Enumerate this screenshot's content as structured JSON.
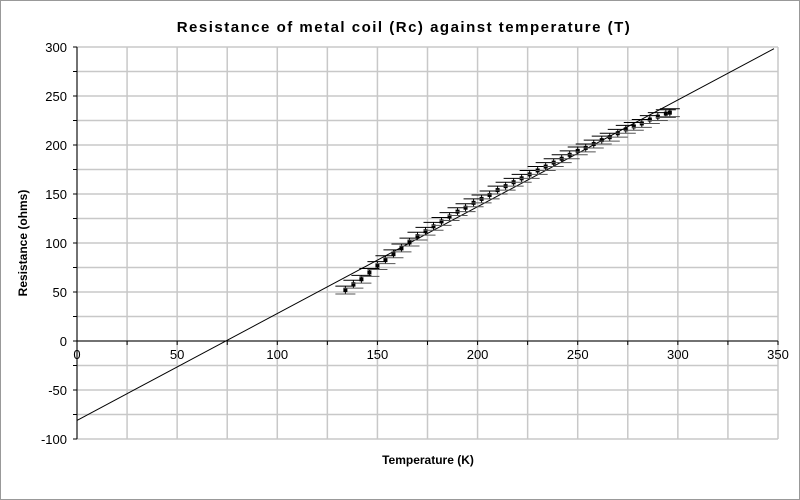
{
  "chart_data": {
    "type": "scatter",
    "title": "Resistance of metal coil (Rc) against temperature (T)",
    "xlabel": "Temperature (K)",
    "ylabel": "Resistance (ohms)",
    "xlim": [
      0,
      350
    ],
    "ylim": [
      -100,
      300
    ],
    "xticks": [
      0,
      50,
      100,
      150,
      200,
      250,
      300,
      350
    ],
    "yticks": [
      -100,
      -50,
      0,
      50,
      100,
      150,
      200,
      250,
      300
    ],
    "grid": true,
    "grid_step": 25,
    "series": [
      {
        "name": "Rc",
        "x": [
          134,
          138,
          142,
          146,
          150,
          154,
          158,
          162,
          166,
          170,
          174,
          178,
          182,
          186,
          190,
          194,
          198,
          202,
          206,
          210,
          214,
          218,
          222,
          226,
          230,
          234,
          238,
          242,
          246,
          250,
          254,
          258,
          262,
          266,
          270,
          274,
          278,
          282,
          286,
          290,
          294,
          296
        ],
        "y": [
          52,
          58,
          63,
          70,
          77,
          83,
          89,
          95,
          101,
          107,
          112,
          117,
          122,
          127,
          132,
          136,
          141,
          145,
          149,
          154,
          158,
          162,
          166,
          170,
          174,
          178,
          182,
          186,
          190,
          194,
          197,
          201,
          205,
          208,
          212,
          216,
          219,
          222,
          226,
          229,
          232,
          233
        ],
        "y_error": 4,
        "x_error": 5
      }
    ],
    "trendline": {
      "type": "linear",
      "slope": 1.09,
      "intercept": -81,
      "x_range": [
        0,
        348
      ]
    },
    "colors": {
      "grid": "#c8c8c8",
      "marks": "#000000"
    }
  }
}
